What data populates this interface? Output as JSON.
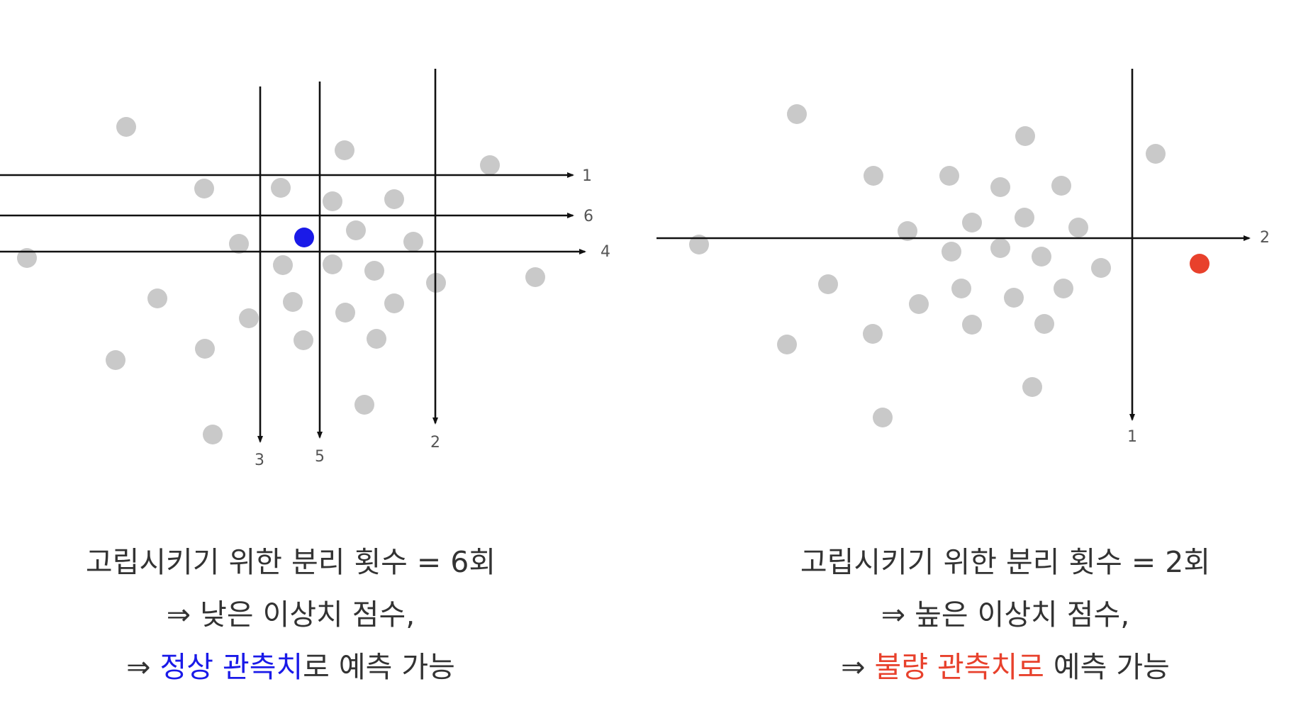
{
  "colors": {
    "point": "#c9c9c9",
    "axis": "#111111",
    "normal": "#1a1ae8",
    "anomaly": "#e8412c",
    "label": "#555555"
  },
  "left_panel": {
    "split_lines": [
      {
        "orientation": "horizontal",
        "label": "1"
      },
      {
        "orientation": "horizontal",
        "label": "6"
      },
      {
        "orientation": "horizontal",
        "label": "4"
      },
      {
        "orientation": "vertical",
        "label": "3"
      },
      {
        "orientation": "vertical",
        "label": "5"
      },
      {
        "orientation": "vertical",
        "label": "2"
      }
    ],
    "highlight": "normal",
    "caption": {
      "line1": "고립시키기 위한 분리 횟수 = 6회",
      "line2": "⇒ 낮은 이상치 점수,",
      "line3_prefix": "⇒ ",
      "line3_highlight": "정상 관측치",
      "line3_suffix": "로 예측 가능"
    }
  },
  "right_panel": {
    "split_lines": [
      {
        "orientation": "horizontal",
        "label": "2"
      },
      {
        "orientation": "vertical",
        "label": "1"
      }
    ],
    "highlight": "anomaly",
    "caption": {
      "line1": "고립시키기 위한 분리 횟수 = 2회",
      "line2": "⇒ 높은 이상치 점수,",
      "line3_prefix": "⇒ ",
      "line3_highlight": "불량 관측치로",
      "line3_suffix": " 예측 가능"
    }
  }
}
